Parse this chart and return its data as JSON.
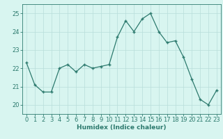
{
  "x": [
    0,
    1,
    2,
    3,
    4,
    5,
    6,
    7,
    8,
    9,
    10,
    11,
    12,
    13,
    14,
    15,
    16,
    17,
    18,
    19,
    20,
    21,
    22,
    23
  ],
  "y": [
    22.3,
    21.1,
    20.7,
    20.7,
    22.0,
    22.2,
    21.8,
    22.2,
    22.0,
    22.1,
    22.2,
    23.7,
    24.6,
    24.0,
    24.7,
    25.0,
    24.0,
    23.4,
    23.5,
    22.6,
    21.4,
    20.3,
    20.0,
    20.8
  ],
  "xlabel": "Humidex (Indice chaleur)",
  "xlim": [
    -0.5,
    23.5
  ],
  "ylim": [
    19.5,
    25.5
  ],
  "yticks": [
    20,
    21,
    22,
    23,
    24,
    25
  ],
  "xticks": [
    0,
    1,
    2,
    3,
    4,
    5,
    6,
    7,
    8,
    9,
    10,
    11,
    12,
    13,
    14,
    15,
    16,
    17,
    18,
    19,
    20,
    21,
    22,
    23
  ],
  "line_color": "#2d7a6e",
  "marker_color": "#2d7a6e",
  "bg_color": "#d8f5f0",
  "grid_color": "#b8deda",
  "axis_label_color": "#2d7a6e",
  "tick_color": "#2d7a6e",
  "font_size_axis": 6.5,
  "font_size_ticks": 6.0
}
